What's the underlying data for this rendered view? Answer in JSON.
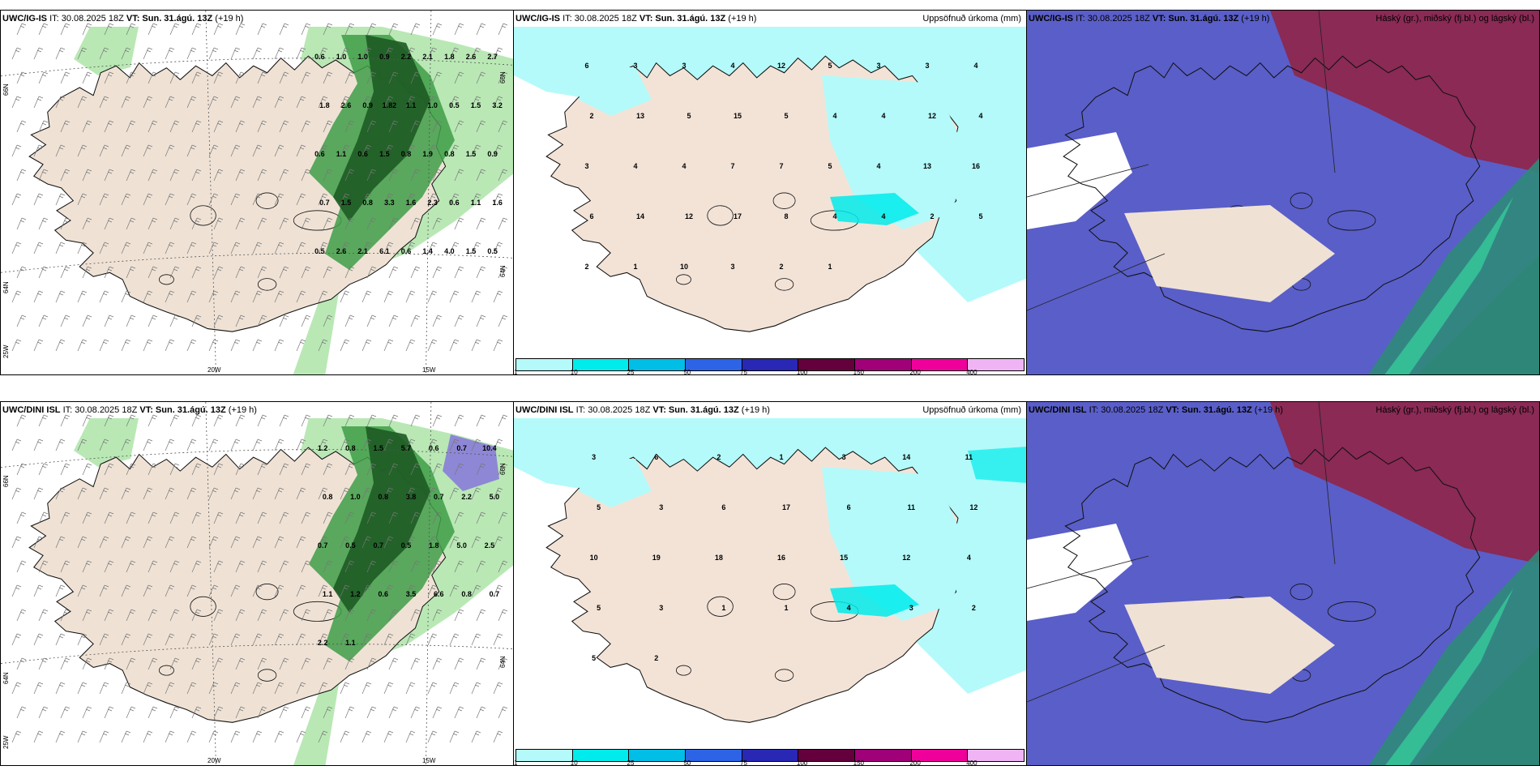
{
  "panels": [
    {
      "id": "p1",
      "model": "UWC/IG-IS",
      "it": "IT: 30.08.2025 18Z",
      "vt": "VT: Sun. 31.ágú. 13Z",
      "lead": "(+19 h)",
      "right_title": "",
      "axis_labels": {
        "lat1": "66N",
        "lat2": "64N",
        "lon1": "20W",
        "lon2": "15W",
        "lon3": "25W",
        "latR1": "66N",
        "latR2": "64N"
      },
      "values": [
        "0.6",
        "1.0",
        "1.0",
        "0.9",
        "2.2",
        "2.1",
        "1.8",
        "2.6",
        "2.7",
        "1.8",
        "2.6",
        "0.9",
        "1.82",
        "1.1",
        "1.0",
        "0.5",
        "1.5",
        "3.2",
        "0.6",
        "1.1",
        "0.6",
        "1.5",
        "0.8",
        "1.9",
        "0.8",
        "1.5",
        "0.9",
        "0.7",
        "1.5",
        "0.8",
        "3.3",
        "1.6",
        "2.3",
        "0.6",
        "1.1",
        "1.6",
        "0.5",
        "2.6",
        "2.1",
        "6.1",
        "0.6",
        "1.4",
        "4.0",
        "1.5",
        "0.5"
      ]
    },
    {
      "id": "p2",
      "model": "UWC/IG-IS",
      "it": "IT: 30.08.2025 18Z",
      "vt": "VT: Sun. 31.ágú. 13Z",
      "lead": "(+19 h)",
      "right_title": "Uppsöfnuð úrkoma (mm)",
      "values": [
        "6",
        "3",
        "3",
        "4",
        "12",
        "5",
        "3",
        "3",
        "4",
        "2",
        "13",
        "5",
        "15",
        "5",
        "4",
        "4",
        "12",
        "4",
        "3",
        "4",
        "4",
        "7",
        "7",
        "5",
        "4",
        "13",
        "16",
        "6",
        "14",
        "12",
        "17",
        "8",
        "4",
        "4",
        "2",
        "5",
        "2",
        "1",
        "10",
        "3",
        "2",
        "1"
      ]
    },
    {
      "id": "p3",
      "model": "UWC/IG-IS",
      "it": "IT: 30.08.2025 18Z",
      "vt": "VT: Sun. 31.ágú. 13Z",
      "lead": "(+19 h)",
      "right_title": "Háský (gr.), miðský (fj.bl.) og lágský (bl.)"
    },
    {
      "id": "p4",
      "model": "UWC/DINI ISL",
      "it": "IT: 30.08.2025 18Z",
      "vt": "VT: Sun. 31.ágú. 13Z",
      "lead": "(+19 h)",
      "right_title": "",
      "axis_labels": {
        "lat1": "66N",
        "lat2": "64N",
        "lon1": "20W",
        "lon2": "15W",
        "lon3": "25W",
        "latR1": "66N",
        "latR2": "64N"
      },
      "values": [
        "1.2",
        "0.8",
        "1.5",
        "5.7",
        "0.6",
        "0.7",
        "10.4",
        "0.8",
        "1.0",
        "0.8",
        "3.8",
        "0.7",
        "2.2",
        "5.0",
        "0.7",
        "0.5",
        "0.7",
        "0.5",
        "1.8",
        "5.0",
        "2.5",
        "1.1",
        "1.2",
        "0.6",
        "3.5",
        "6.6",
        "0.8",
        "0.7",
        "2.2",
        "1.1"
      ]
    },
    {
      "id": "p5",
      "model": "UWC/DINI ISL",
      "it": "IT: 30.08.2025 18Z",
      "vt": "VT: Sun. 31.ágú. 13Z",
      "lead": "(+19 h)",
      "right_title": "Uppsöfnuð úrkoma (mm)",
      "values": [
        "3",
        "6",
        "2",
        "1",
        "3",
        "14",
        "11",
        "5",
        "3",
        "6",
        "17",
        "6",
        "11",
        "12",
        "10",
        "19",
        "18",
        "16",
        "15",
        "12",
        "4",
        "5",
        "3",
        "1",
        "1",
        "4",
        "3",
        "2",
        "5",
        "2"
      ]
    },
    {
      "id": "p6",
      "model": "UWC/DINI ISL",
      "it": "IT: 30.08.2025 18Z",
      "vt": "VT: Sun. 31.ágú. 13Z",
      "lead": "(+19 h)",
      "right_title": "Háský (gr.), miðský (fj.bl.) og lágský (bl.)"
    }
  ],
  "colorbar": {
    "colors": [
      "#b4fafa",
      "#00ebeb",
      "#00bee6",
      "#2d64e6",
      "#2828b4",
      "#64003c",
      "#a00078",
      "#f0009b",
      "#f0b4f5"
    ],
    "ticks": [
      "1",
      "10",
      "25",
      "50",
      "75",
      "100",
      "150",
      "200",
      "400"
    ]
  }
}
